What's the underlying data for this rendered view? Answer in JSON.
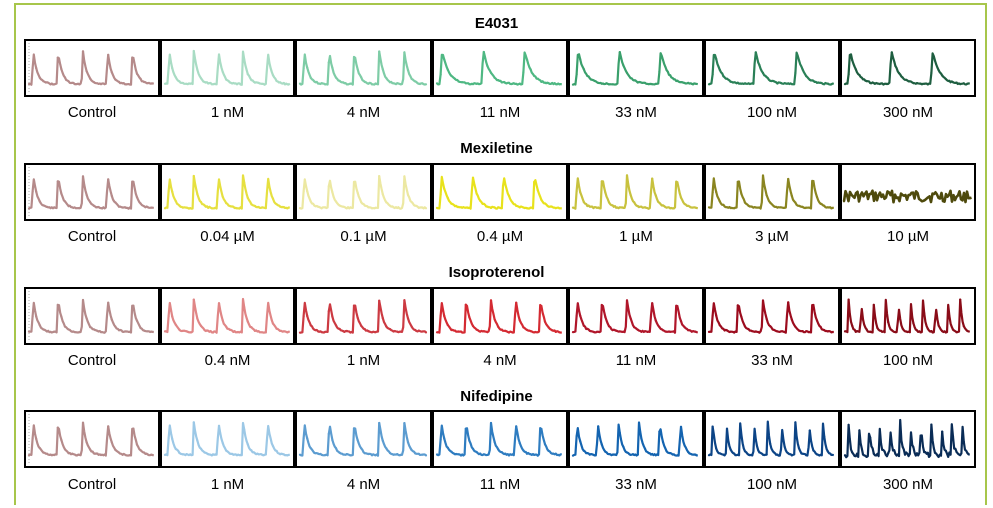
{
  "chart_data": [
    {
      "type": "line",
      "title": "E4031",
      "conditions": [
        "Control",
        "1 nM",
        "4 nM",
        "11 nM",
        "33 nM",
        "100 nM",
        "300 nM"
      ],
      "colors": [
        "#b58a8a",
        "#a9dcc4",
        "#7ecca6",
        "#4fb883",
        "#3aa06c",
        "#2a8057",
        "#1e5e40"
      ],
      "beats_per_panel": [
        5,
        5,
        5,
        3,
        3,
        3,
        3
      ],
      "waveform": [
        "spike",
        "spike",
        "spike",
        "spike",
        "spike",
        "spike",
        "spike"
      ]
    },
    {
      "type": "line",
      "title": "Mexiletine",
      "conditions": [
        "Control",
        "0.04 µM",
        "0.1 µM",
        "0.4 µM",
        "1 µM",
        "3 µM",
        "10 µM"
      ],
      "colors": [
        "#b58a8a",
        "#e6e040",
        "#ece8a2",
        "#e8e21c",
        "#c8c23e",
        "#8a8520",
        "#4e4a0c"
      ],
      "beats_per_panel": [
        5,
        5,
        5,
        4,
        5,
        5,
        0
      ],
      "waveform": [
        "spike",
        "spike",
        "spike",
        "spike",
        "spike",
        "spike",
        "flat"
      ]
    },
    {
      "type": "line",
      "title": "Isoproterenol",
      "conditions": [
        "Control",
        "0.4 nM",
        "1 nM",
        "4 nM",
        "11 nM",
        "33 nM",
        "100 nM"
      ],
      "colors": [
        "#b58a8a",
        "#e08686",
        "#cc3a42",
        "#d42a32",
        "#b0162a",
        "#9c0c1e",
        "#8a0c18"
      ],
      "beats_per_panel": [
        5,
        5,
        5,
        5,
        5,
        5,
        10
      ],
      "waveform": [
        "spike",
        "spike",
        "spike",
        "spike",
        "spike",
        "spike",
        "spike"
      ]
    },
    {
      "type": "line",
      "title": "Nifedipine",
      "conditions": [
        "Control",
        "1 nM",
        "4 nM",
        "11 nM",
        "33 nM",
        "100 nM",
        "300 nM"
      ],
      "colors": [
        "#b58a8a",
        "#9cc8e6",
        "#5c9cd0",
        "#2e7cc0",
        "#1464b0",
        "#0c4486",
        "#0a2c56"
      ],
      "beats_per_panel": [
        5,
        5,
        5,
        5,
        6,
        9,
        12
      ],
      "waveform": [
        "spike",
        "spike",
        "spike",
        "spike",
        "spike",
        "spike",
        "noisy"
      ]
    }
  ]
}
